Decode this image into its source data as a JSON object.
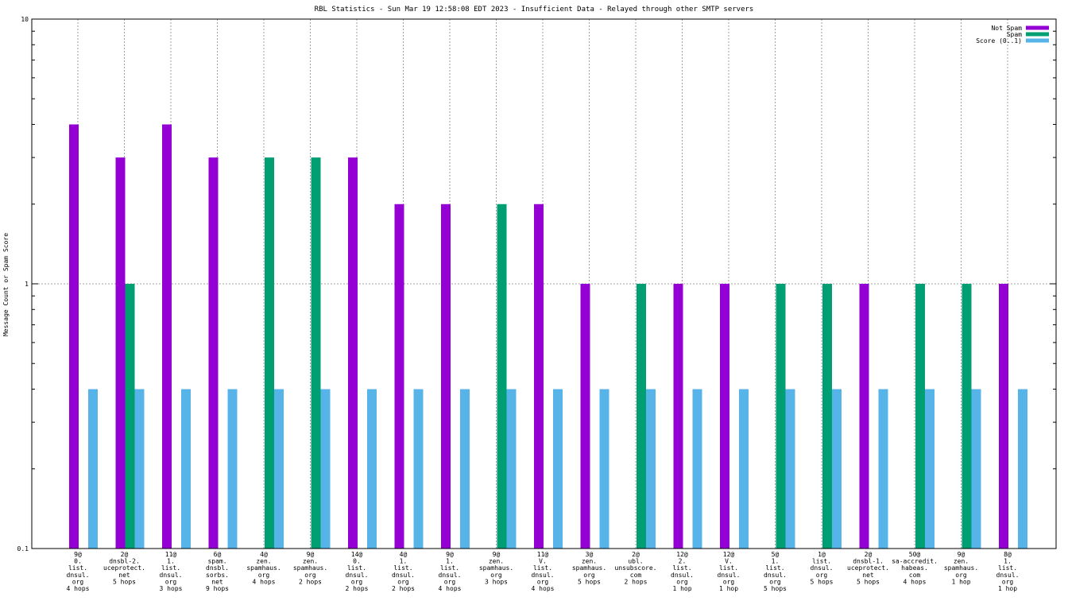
{
  "chart_data": {
    "type": "bar",
    "title": "RBL Statistics - Sun Mar 19 12:58:08 EDT 2023 - Insufficient Data - Relayed through other SMTP servers",
    "xlabel": "",
    "ylabel": "Message Count or Spam Score",
    "yscale": "log",
    "ylim": [
      0.1,
      10
    ],
    "yticks": [
      {
        "value": 0.1,
        "label": "0.1"
      },
      {
        "value": 1,
        "label": "1"
      },
      {
        "value": 10,
        "label": "10"
      }
    ],
    "grid": true,
    "legend_position": "top-right",
    "categories": [
      [
        "9@",
        "0.",
        "list.",
        "dnsul.",
        "org",
        "4 hops"
      ],
      [
        "2@",
        "dnsbl-2.",
        "uceprotect.",
        "net",
        "5 hops"
      ],
      [
        "11@",
        "1.",
        "list.",
        "dnsul.",
        "org",
        "3 hops"
      ],
      [
        "6@",
        "spam.",
        "dnsbl.",
        "sorbs.",
        "net",
        "9 hops"
      ],
      [
        "4@",
        "zen.",
        "spamhaus.",
        "org",
        "4 hops"
      ],
      [
        "9@",
        "zen.",
        "spamhaus.",
        "org",
        "2 hops"
      ],
      [
        "14@",
        "0.",
        "list.",
        "dnsul.",
        "org",
        "2 hops"
      ],
      [
        "4@",
        "1.",
        "list.",
        "dnsul.",
        "org",
        "2 hops"
      ],
      [
        "9@",
        "1.",
        "list.",
        "dnsul.",
        "org",
        "4 hops"
      ],
      [
        "9@",
        "zen.",
        "spamhaus.",
        "org",
        "3 hops"
      ],
      [
        "11@",
        "V.",
        "list.",
        "dnsul.",
        "org",
        "4 hops"
      ],
      [
        "3@",
        "zen.",
        "spamhaus.",
        "org",
        "5 hops"
      ],
      [
        "2@",
        "ubl.",
        "unsubscore.",
        "com",
        "2 hops"
      ],
      [
        "12@",
        "2.",
        "list.",
        "dnsul.",
        "org",
        "1 hop"
      ],
      [
        "12@",
        "V.",
        "list.",
        "dnsul.",
        "org",
        "1 hop"
      ],
      [
        "5@",
        "1.",
        "list.",
        "dnsul.",
        "org",
        "5 hops"
      ],
      [
        "1@",
        "list.",
        "dnsul.",
        "org",
        "5 hops"
      ],
      [
        "2@",
        "dnsbl-1.",
        "uceprotect.",
        "net",
        "5 hops"
      ],
      [
        "50@",
        "sa-accredit.",
        "habeas.",
        "com",
        "4 hops"
      ],
      [
        "9@",
        "zen.",
        "spamhaus.",
        "org",
        "1 hop"
      ],
      [
        "8@",
        "1.",
        "list.",
        "dnsul.",
        "org",
        "1 hop"
      ]
    ],
    "series": [
      {
        "name": "Not Spam",
        "color": "#9400d3",
        "values": [
          4,
          3,
          4,
          3,
          0,
          0,
          3,
          2,
          2,
          0,
          2,
          1,
          0,
          1,
          1,
          0,
          0,
          1,
          0,
          0,
          1
        ]
      },
      {
        "name": "Spam",
        "color": "#009e73",
        "values": [
          0,
          1,
          0,
          0,
          3,
          3,
          0,
          0,
          0,
          2,
          0,
          0,
          1,
          0,
          0,
          1,
          1,
          0,
          1,
          1,
          0
        ]
      },
      {
        "name": "Score (0..1)",
        "color": "#56b4e9",
        "values": [
          0.4,
          0.4,
          0.4,
          0.4,
          0.4,
          0.4,
          0.4,
          0.4,
          0.4,
          0.4,
          0.4,
          0.4,
          0.4,
          0.4,
          0.4,
          0.4,
          0.4,
          0.4,
          0.4,
          0.4,
          0.4
        ]
      }
    ]
  }
}
